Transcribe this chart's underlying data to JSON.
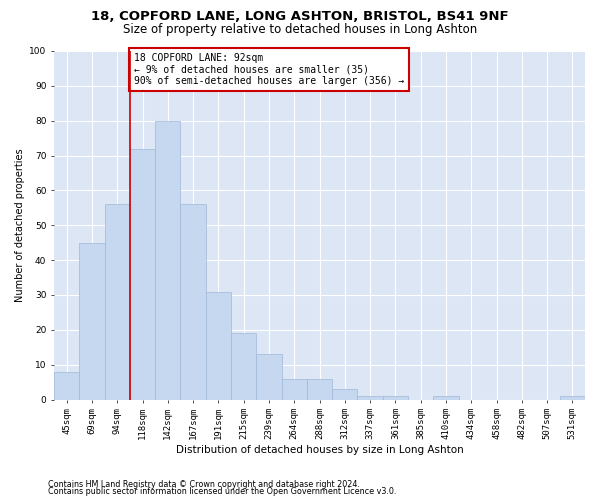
{
  "title1": "18, COPFORD LANE, LONG ASHTON, BRISTOL, BS41 9NF",
  "title2": "Size of property relative to detached houses in Long Ashton",
  "xlabel": "Distribution of detached houses by size in Long Ashton",
  "ylabel": "Number of detached properties",
  "categories": [
    "45sqm",
    "69sqm",
    "94sqm",
    "118sqm",
    "142sqm",
    "167sqm",
    "191sqm",
    "215sqm",
    "239sqm",
    "264sqm",
    "288sqm",
    "312sqm",
    "337sqm",
    "361sqm",
    "385sqm",
    "410sqm",
    "434sqm",
    "458sqm",
    "482sqm",
    "507sqm",
    "531sqm"
  ],
  "values": [
    8,
    45,
    56,
    72,
    80,
    56,
    31,
    19,
    13,
    6,
    6,
    3,
    1,
    1,
    0,
    1,
    0,
    0,
    0,
    0,
    1
  ],
  "bar_color": "#c5d8f0",
  "bar_edge_color": "#a0b8d8",
  "vline_x": 2.5,
  "vline_color": "#cc0000",
  "annotation_text": "18 COPFORD LANE: 92sqm\n← 9% of detached houses are smaller (35)\n90% of semi-detached houses are larger (356) →",
  "annotation_box_color": "#ffffff",
  "annotation_box_edge_color": "#cc0000",
  "ylim": [
    0,
    100
  ],
  "footnote1": "Contains HM Land Registry data © Crown copyright and database right 2024.",
  "footnote2": "Contains public sector information licensed under the Open Government Licence v3.0.",
  "plot_bg_color": "#dce6f5",
  "fig_bg_color": "#ffffff",
  "grid_color": "#ffffff",
  "title1_fontsize": 9.5,
  "title2_fontsize": 8.5,
  "annotation_fontsize": 7.0,
  "axis_label_fontsize": 7.5,
  "tick_fontsize": 6.5,
  "ylabel_fontsize": 7.0,
  "footnote_fontsize": 5.8
}
